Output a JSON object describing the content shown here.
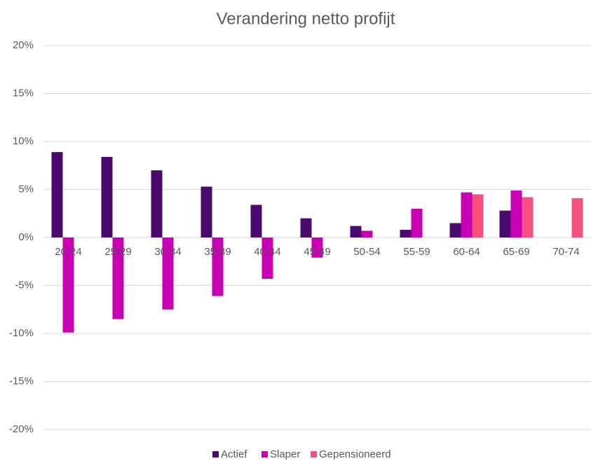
{
  "chart_data": {
    "type": "bar",
    "title": "Verandering netto profijt",
    "categories": [
      "20-24",
      "25-29",
      "30-34",
      "35-39",
      "40-44",
      "45-49",
      "50-54",
      "55-59",
      "60-64",
      "65-69",
      "70-74"
    ],
    "series": [
      {
        "name": "Actief",
        "color": "#4b0a6e",
        "values": [
          8.9,
          8.4,
          7.0,
          5.3,
          3.4,
          2.0,
          1.2,
          0.8,
          1.5,
          2.8,
          null
        ]
      },
      {
        "name": "Slaper",
        "color": "#c800b4",
        "values": [
          -9.9,
          -8.5,
          -7.5,
          -6.1,
          -4.3,
          -2.1,
          0.7,
          3.0,
          4.7,
          4.9,
          null
        ]
      },
      {
        "name": "Gepensioneerd",
        "color": "#f5507f",
        "values": [
          null,
          null,
          null,
          null,
          null,
          null,
          null,
          null,
          4.5,
          4.2,
          4.1
        ]
      }
    ],
    "ylim": [
      -20,
      20
    ],
    "yticks": [
      {
        "value": -20,
        "label": "-20%"
      },
      {
        "value": -15,
        "label": "-15%"
      },
      {
        "value": -10,
        "label": "-10%"
      },
      {
        "value": -5,
        "label": "-5%"
      },
      {
        "value": 0,
        "label": "0%"
      },
      {
        "value": 5,
        "label": "5%"
      },
      {
        "value": 10,
        "label": "10%"
      },
      {
        "value": 15,
        "label": "15%"
      },
      {
        "value": 20,
        "label": "20%"
      }
    ],
    "grid": true,
    "legend": "bottom"
  }
}
